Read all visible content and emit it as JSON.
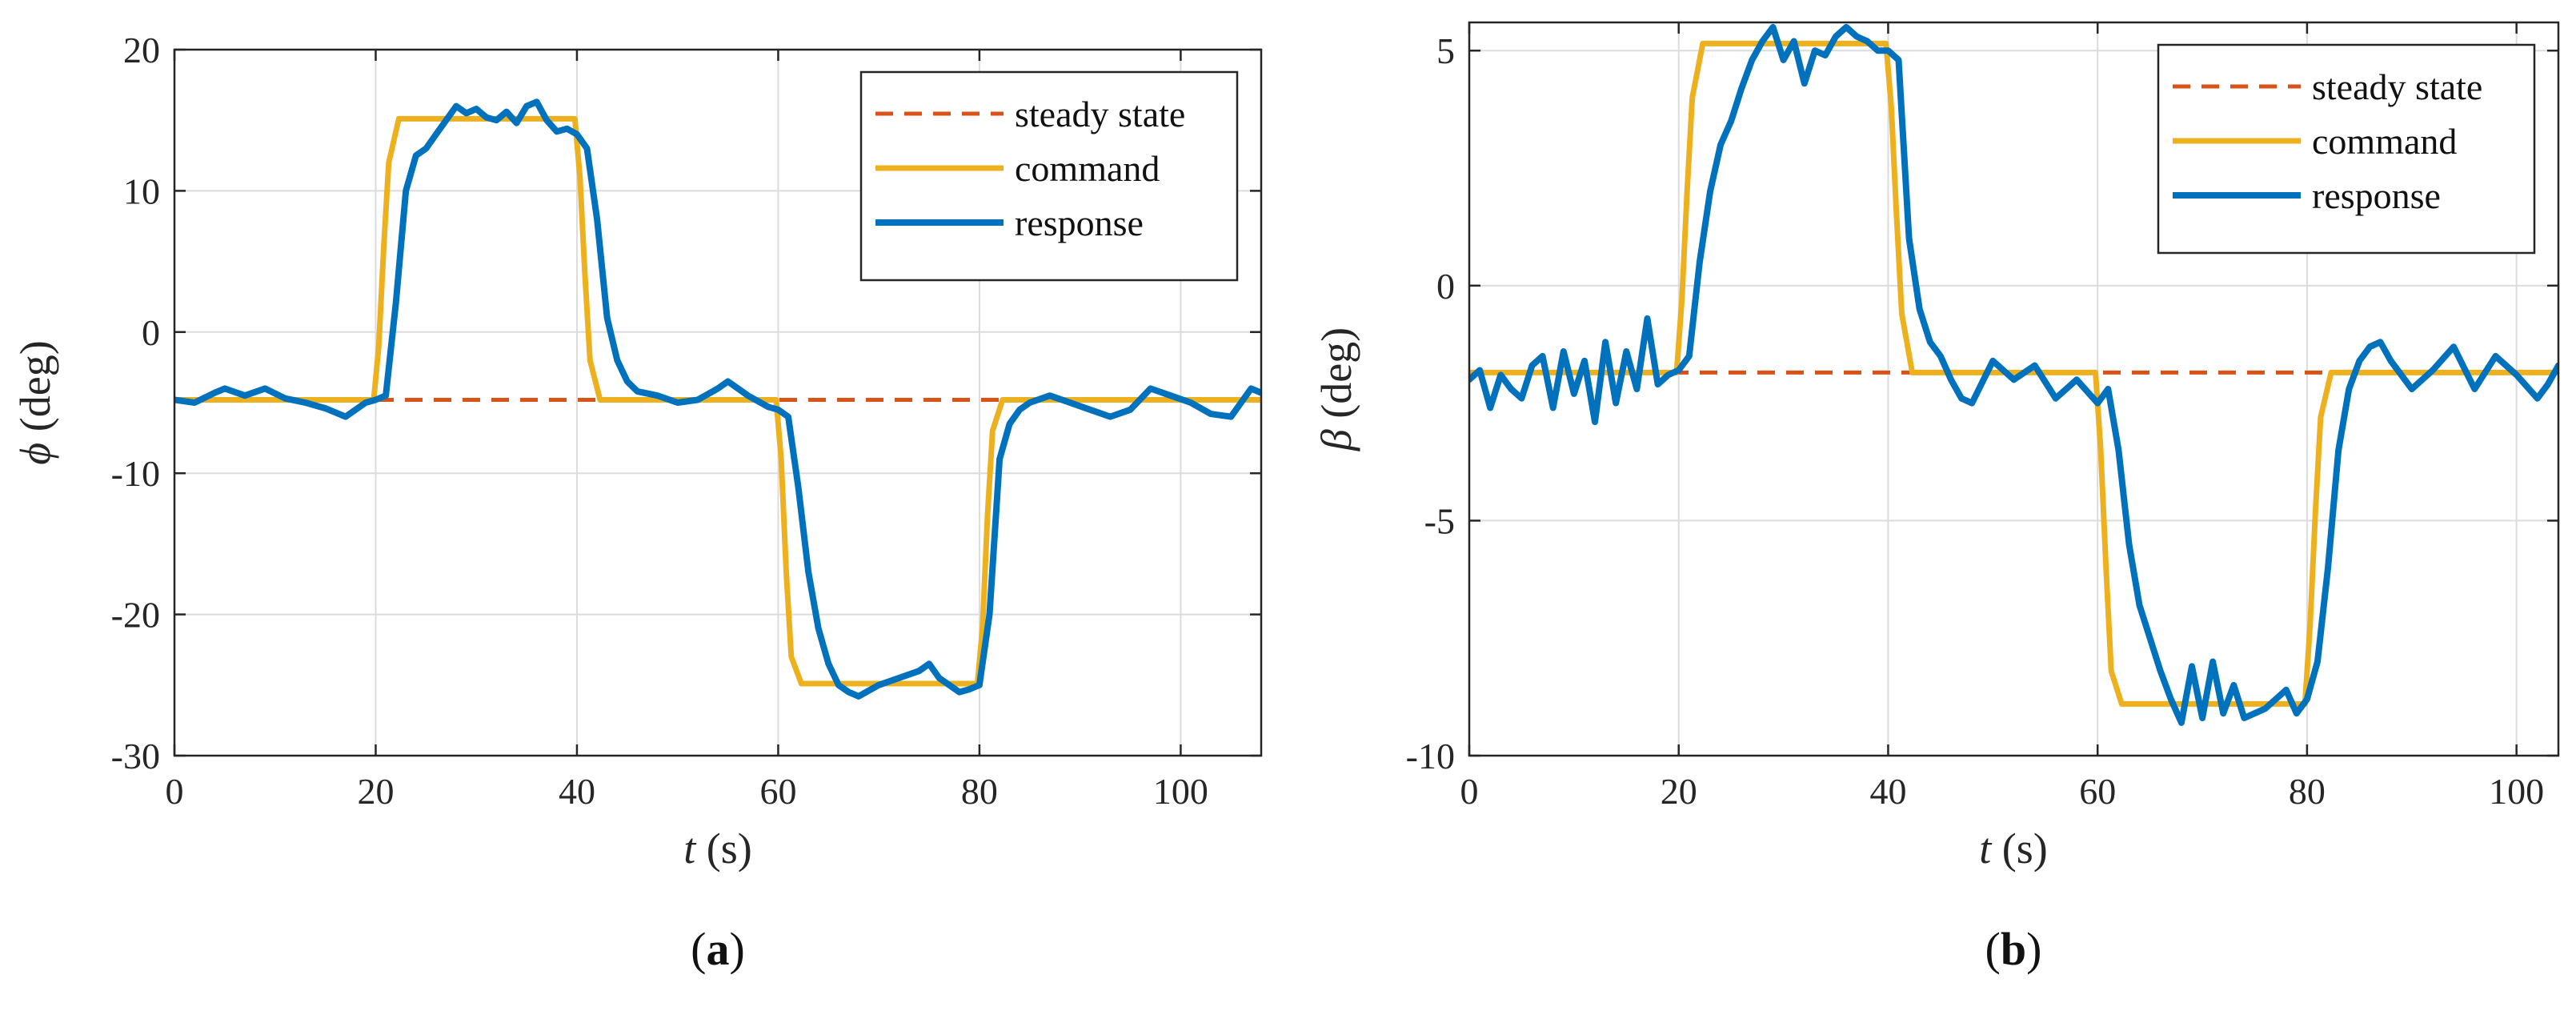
{
  "colors": {
    "steady": "#D95319",
    "command": "#EDB120",
    "response": "#0072BD",
    "grid": "#dcdcdc",
    "axis": "#262626"
  },
  "chart_data": [
    {
      "type": "line",
      "panel_label": "(a)",
      "xlabel_var": "t",
      "xlabel_unit": "(s)",
      "ylabel_var": "ϕ",
      "ylabel_unit": "(deg)",
      "xlim": [
        0,
        108
      ],
      "ylim": [
        -30,
        20
      ],
      "xticks": [
        0,
        20,
        40,
        60,
        80,
        100
      ],
      "xtick_labels": [
        "0",
        "20",
        "40",
        "60",
        "80",
        "100"
      ],
      "yticks": [
        -30,
        -20,
        -10,
        0,
        10,
        20
      ],
      "ytick_labels": [
        "-30",
        "-20",
        "-10",
        "0",
        "10",
        "20"
      ],
      "grid": true,
      "legend_position": "top-right",
      "series": [
        {
          "name": "steady state",
          "style": "dashed",
          "x": [
            0,
            108
          ],
          "y": [
            -4.8,
            -4.8
          ]
        },
        {
          "name": "command",
          "style": "solid",
          "x": [
            0,
            19.8,
            20.3,
            20.8,
            21.3,
            22.3,
            39.8,
            40.3,
            40.8,
            41.3,
            42.3,
            59.8,
            60.3,
            60.8,
            61.3,
            62.3,
            79.8,
            80.3,
            80.8,
            81.3,
            82.3,
            108
          ],
          "y": [
            -4.8,
            -4.8,
            -1,
            6,
            12,
            15.1,
            15.1,
            11,
            4,
            -2,
            -4.8,
            -4.8,
            -9,
            -17,
            -23,
            -24.9,
            -24.9,
            -21,
            -13,
            -7,
            -4.8,
            -4.8
          ]
        },
        {
          "name": "response",
          "style": "solid",
          "x": [
            0,
            2,
            4,
            5,
            7,
            9,
            11,
            13,
            15,
            17,
            19,
            20,
            21,
            22,
            23,
            24,
            25,
            26,
            27,
            28,
            29,
            30,
            31,
            32,
            33,
            34,
            35,
            36,
            37,
            38,
            39,
            40,
            41,
            42,
            43,
            44,
            45,
            46,
            48,
            50,
            52,
            54,
            55,
            57,
            59,
            60,
            61,
            62,
            63,
            64,
            65,
            66,
            67,
            68,
            70,
            72,
            74,
            75,
            76,
            77,
            78,
            79,
            80,
            81,
            82,
            83,
            84,
            85,
            87,
            89,
            91,
            93,
            95,
            97,
            99,
            101,
            103,
            105,
            107,
            108
          ],
          "y": [
            -4.8,
            -5,
            -4.3,
            -4,
            -4.5,
            -4,
            -4.7,
            -5,
            -5.4,
            -6,
            -5,
            -4.8,
            -4.5,
            2,
            10,
            12.5,
            13,
            14,
            15,
            16,
            15.5,
            15.8,
            15.2,
            15,
            15.6,
            14.8,
            16,
            16.3,
            15,
            14.2,
            14.4,
            14,
            13,
            8,
            1,
            -2,
            -3.5,
            -4.2,
            -4.5,
            -5,
            -4.8,
            -4,
            -3.5,
            -4.5,
            -5.3,
            -5.5,
            -6,
            -11,
            -17,
            -21,
            -23.5,
            -25,
            -25.5,
            -25.8,
            -25,
            -24.5,
            -24,
            -23.5,
            -24.5,
            -25,
            -25.5,
            -25.3,
            -25,
            -20,
            -9,
            -6.5,
            -5.5,
            -5,
            -4.5,
            -5,
            -5.5,
            -6,
            -5.5,
            -4,
            -4.5,
            -5,
            -5.8,
            -6,
            -4,
            -4.3
          ]
        }
      ]
    },
    {
      "type": "line",
      "panel_label": "(b)",
      "xlabel_var": "t",
      "xlabel_unit": "(s)",
      "ylabel_var": "β",
      "ylabel_unit": "(deg)",
      "xlim": [
        0,
        104
      ],
      "ylim": [
        -10,
        5.6
      ],
      "xticks": [
        0,
        20,
        40,
        60,
        80,
        100
      ],
      "xtick_labels": [
        "0",
        "20",
        "40",
        "60",
        "80",
        "100"
      ],
      "yticks": [
        -10,
        -5,
        0,
        5
      ],
      "ytick_labels": [
        "-10",
        "-5",
        "0",
        "5"
      ],
      "grid": true,
      "legend_position": "top-right",
      "series": [
        {
          "name": "steady state",
          "style": "dashed",
          "x": [
            0,
            104
          ],
          "y": [
            -1.85,
            -1.85
          ]
        },
        {
          "name": "command",
          "style": "solid",
          "x": [
            0,
            19.8,
            20.3,
            20.8,
            21.3,
            22.3,
            39.8,
            40.3,
            40.8,
            41.3,
            42.3,
            59.8,
            60.3,
            60.8,
            61.3,
            62.3,
            79.8,
            80.3,
            80.8,
            81.3,
            82.3,
            104
          ],
          "y": [
            -1.85,
            -1.85,
            -0.3,
            2,
            4,
            5.15,
            5.15,
            3.8,
            1.5,
            -0.6,
            -1.85,
            -1.85,
            -3.5,
            -6,
            -8.2,
            -8.9,
            -8.9,
            -7.2,
            -4.8,
            -2.8,
            -1.85,
            -1.85
          ]
        },
        {
          "name": "response",
          "style": "solid",
          "x": [
            0,
            1,
            2,
            3,
            4,
            5,
            6,
            7,
            8,
            9,
            10,
            11,
            12,
            13,
            14,
            15,
            16,
            17,
            18,
            19,
            20,
            21,
            22,
            23,
            24,
            25,
            26,
            27,
            28,
            29,
            30,
            31,
            32,
            33,
            34,
            35,
            36,
            37,
            38,
            39,
            40,
            41,
            42,
            43,
            44,
            45,
            46,
            47,
            48,
            50,
            52,
            54,
            56,
            58,
            60,
            61,
            62,
            63,
            64,
            65,
            66,
            67,
            68,
            69,
            70,
            71,
            72,
            73,
            74,
            76,
            78,
            79,
            80,
            81,
            82,
            83,
            84,
            85,
            86,
            87,
            88,
            90,
            92,
            94,
            96,
            98,
            100,
            102,
            103,
            104
          ],
          "y": [
            -2,
            -1.8,
            -2.6,
            -1.9,
            -2.2,
            -2.4,
            -1.7,
            -1.5,
            -2.6,
            -1.4,
            -2.3,
            -1.6,
            -2.9,
            -1.2,
            -2.5,
            -1.4,
            -2.2,
            -0.7,
            -2.1,
            -1.9,
            -1.8,
            -1.5,
            0.5,
            2,
            3,
            3.5,
            4.2,
            4.8,
            5.2,
            5.5,
            4.8,
            5.2,
            4.3,
            5,
            4.9,
            5.3,
            5.5,
            5.3,
            5.2,
            5,
            5,
            4.8,
            1,
            -0.5,
            -1.2,
            -1.5,
            -2,
            -2.4,
            -2.5,
            -1.6,
            -2,
            -1.7,
            -2.4,
            -2,
            -2.5,
            -2.2,
            -3.5,
            -5.5,
            -6.8,
            -7.5,
            -8.2,
            -8.8,
            -9.3,
            -8.1,
            -9.2,
            -8,
            -9.1,
            -8.5,
            -9.2,
            -9,
            -8.6,
            -9.1,
            -8.8,
            -8,
            -6,
            -3.5,
            -2.2,
            -1.6,
            -1.3,
            -1.2,
            -1.6,
            -2.2,
            -1.8,
            -1.3,
            -2.2,
            -1.5,
            -1.9,
            -2.4,
            -2.1,
            -1.7
          ]
        }
      ]
    }
  ]
}
